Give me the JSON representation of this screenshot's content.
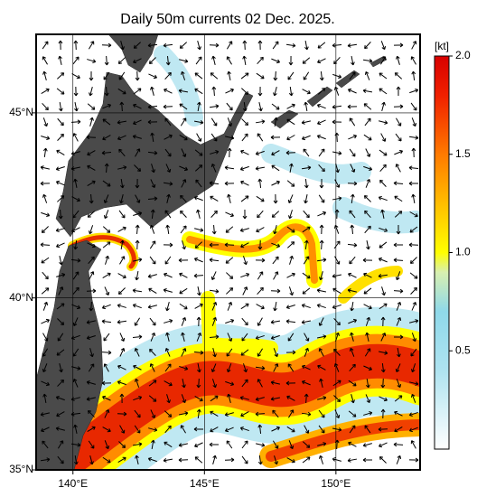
{
  "chart_data": {
    "type": "map",
    "title": "Daily 50m currents 02 Dec. 2025.",
    "xlim": [
      138.6,
      153.2
    ],
    "ylim": [
      35,
      47
    ],
    "xticks": [
      {
        "value": 140,
        "label": "140°E"
      },
      {
        "value": 145,
        "label": "145°E"
      },
      {
        "value": 150,
        "label": "150°E"
      }
    ],
    "yticks": [
      {
        "value": 35,
        "label": "35°N"
      },
      {
        "value": 40,
        "label": "40°N"
      },
      {
        "value": 45,
        "label": "45°N"
      }
    ],
    "grid": true,
    "colorbar": {
      "label": "[kt]",
      "lim": [
        0,
        2
      ],
      "ticks": [
        0.5,
        {
          "value": 1.0,
          "label": "1.0"
        },
        1.5,
        {
          "value": 2.0,
          "label": "2.0"
        }
      ]
    }
  }
}
